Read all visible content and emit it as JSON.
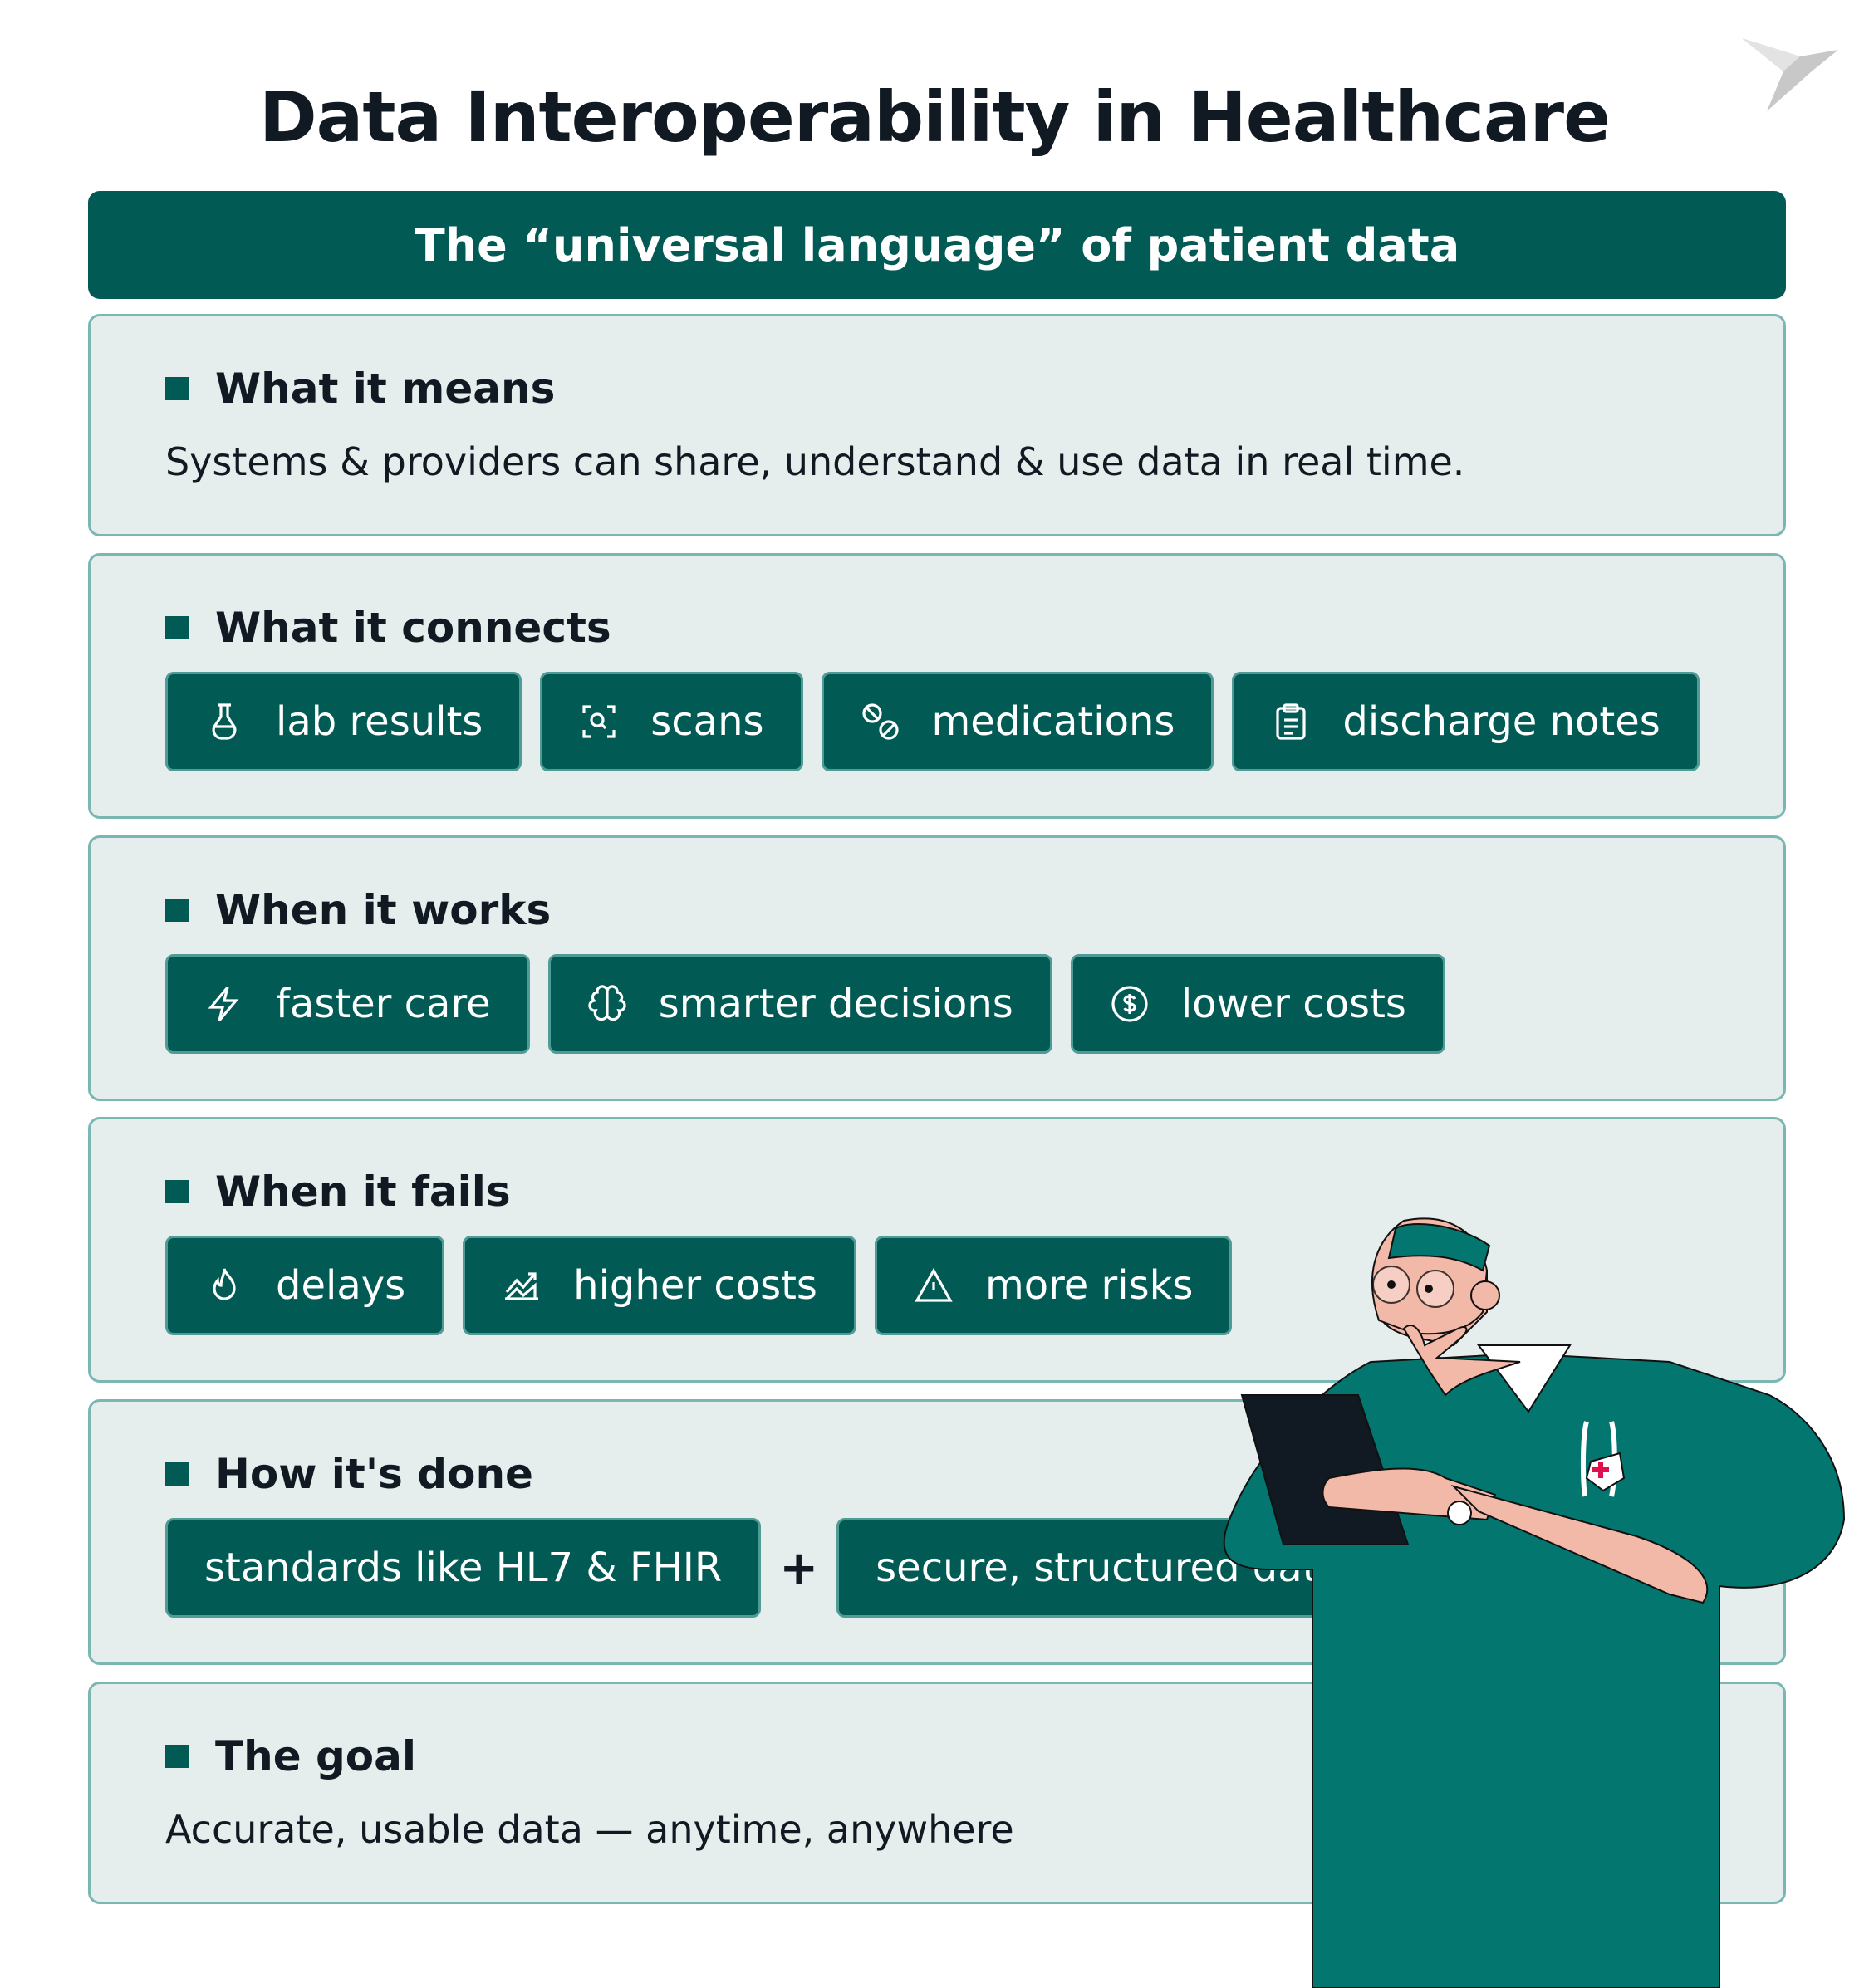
{
  "title": "Data Interoperability in Healthcare",
  "banner": "The “universal language” of patient data",
  "sections": [
    {
      "heading": "What it means",
      "text": "Systems & providers can share, understand & use data in real time."
    },
    {
      "heading": "What it connects",
      "chips": [
        {
          "label": "lab results",
          "icon": "flask-icon"
        },
        {
          "label": "scans",
          "icon": "scan-icon"
        },
        {
          "label": "medications",
          "icon": "pill-icon"
        },
        {
          "label": "discharge notes",
          "icon": "clipboard-icon"
        }
      ]
    },
    {
      "heading": "When it works",
      "chips": [
        {
          "label": "faster care",
          "icon": "lightning-icon"
        },
        {
          "label": "smarter decisions",
          "icon": "brain-icon"
        },
        {
          "label": "lower costs",
          "icon": "dollar-icon"
        }
      ]
    },
    {
      "heading": "When it fails",
      "chips": [
        {
          "label": "delays",
          "icon": "flame-icon"
        },
        {
          "label": "higher costs",
          "icon": "chart-up-icon"
        },
        {
          "label": "more risks",
          "icon": "warning-icon"
        }
      ]
    },
    {
      "heading": "How it's done",
      "chips": [
        {
          "label": "standards like HL7 & FHIR"
        },
        {
          "label": "secure, structured data"
        }
      ],
      "joiner": "+"
    },
    {
      "heading": "The goal",
      "text": "Accurate, usable data — anytime, anywhere"
    }
  ],
  "colors": {
    "primary": "#025a55",
    "card": "#e6eeed",
    "border": "#7ab7b2",
    "scrubs": "#037670"
  }
}
